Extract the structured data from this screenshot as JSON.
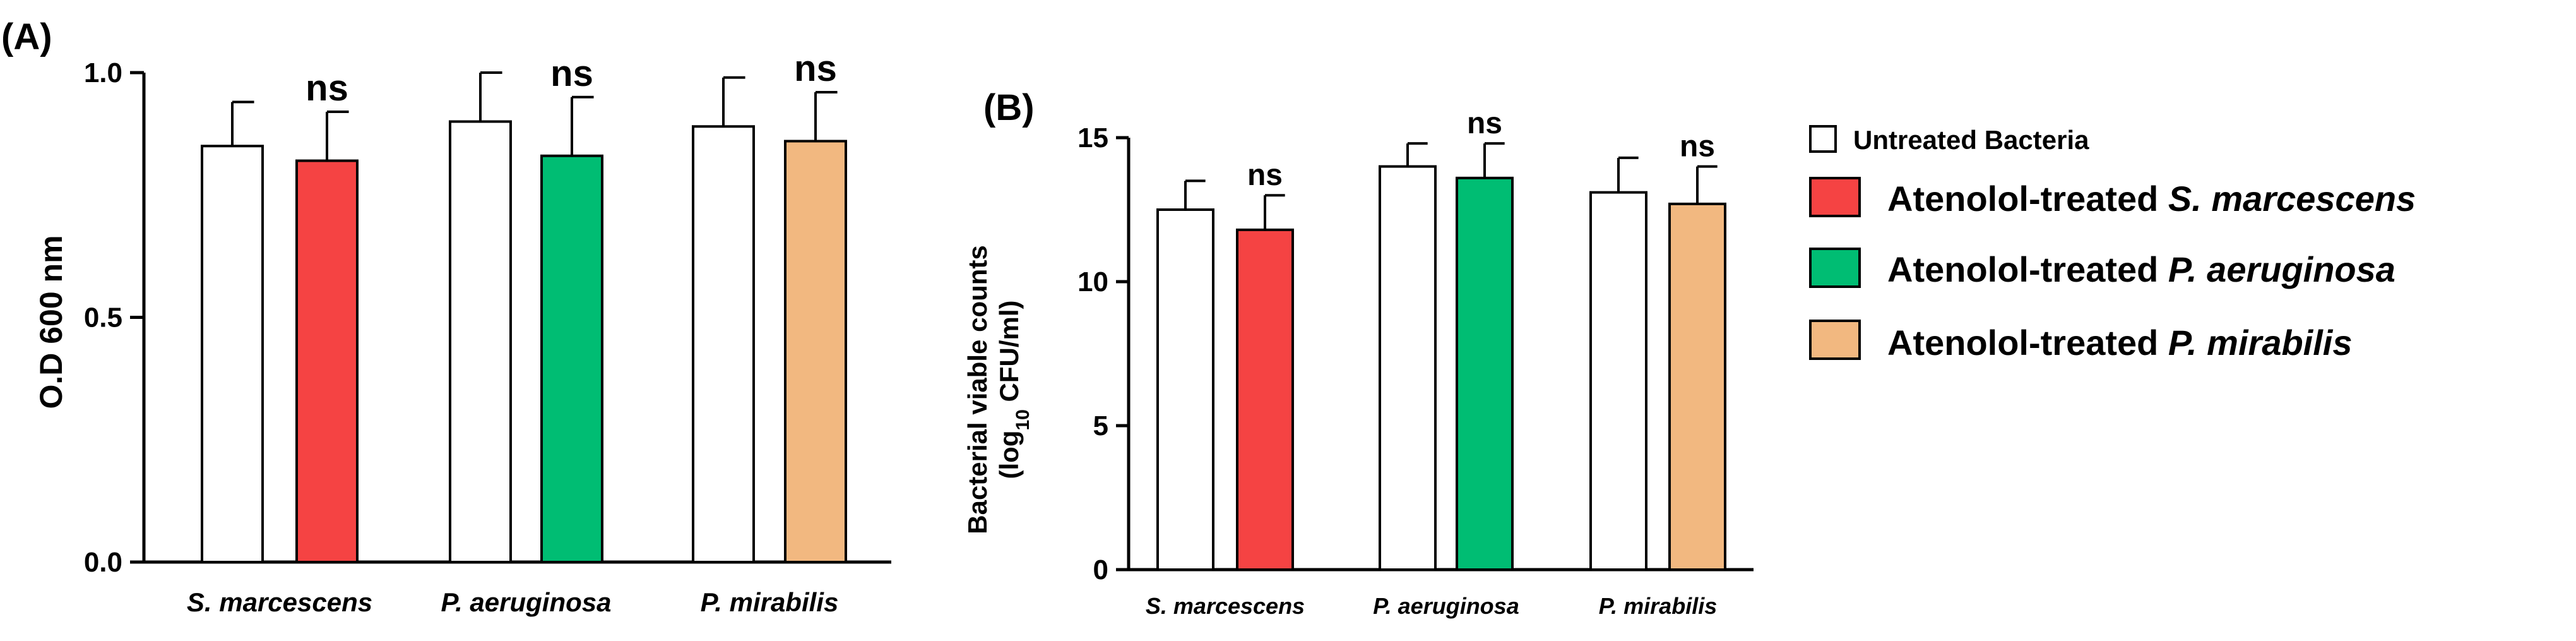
{
  "colors": {
    "untreated": "#ffffff",
    "s_marcescens": "#f54343",
    "p_aeruginosa": "#00bd73",
    "p_mirabilis": "#f2b880",
    "axis": "#000000"
  },
  "legend": {
    "items": [
      {
        "prefix": "Untreated Bacteria",
        "italic": "",
        "color_key": "untreated"
      },
      {
        "prefix": "Atenolol-treated ",
        "italic": "S. marcescens",
        "color_key": "s_marcescens"
      },
      {
        "prefix": "Atenolol-treated ",
        "italic": "P. aeruginosa",
        "color_key": "p_aeruginosa"
      },
      {
        "prefix": "Atenolol-treated ",
        "italic": "P.  mirabilis",
        "color_key": "p_mirabilis"
      }
    ]
  },
  "chart_data": [
    {
      "type": "bar",
      "panel_label": "(A)",
      "ylabel": "O.D 600 nm",
      "ylim": [
        0,
        1.0
      ],
      "yticks": [
        "0.0",
        "0.5",
        "1.0"
      ],
      "ytick_values": [
        0,
        0.5,
        1.0
      ],
      "categories": [
        "S. marcescens",
        "P. aeruginosa",
        "P.  mirabilis"
      ],
      "series": [
        {
          "name": "Untreated Bacteria",
          "values": [
            0.85,
            0.9,
            0.89
          ],
          "errors": [
            0.09,
            0.1,
            0.1
          ]
        },
        {
          "name": "Atenolol-treated",
          "values": [
            0.82,
            0.83,
            0.86
          ],
          "errors": [
            0.1,
            0.12,
            0.1
          ]
        }
      ],
      "annotations": [
        "ns",
        "ns",
        "ns"
      ]
    },
    {
      "type": "bar",
      "panel_label": "(B)",
      "ylabel_line1": "Bacterial viable counts",
      "ylabel_line2_pre": "(log",
      "ylabel_line2_sub": "10",
      "ylabel_line2_post": " CFU/ml)",
      "ylim": [
        0,
        15
      ],
      "yticks": [
        "0",
        "5",
        "10",
        "15"
      ],
      "ytick_values": [
        0,
        5,
        10,
        15
      ],
      "categories": [
        "S. marcescens",
        "P. aeruginosa",
        "P.  mirabilis"
      ],
      "series": [
        {
          "name": "Untreated Bacteria",
          "values": [
            12.5,
            14.0,
            13.1
          ],
          "errors": [
            1.0,
            0.8,
            1.2
          ]
        },
        {
          "name": "Atenolol-treated",
          "values": [
            11.8,
            13.6,
            12.7
          ],
          "errors": [
            1.2,
            1.2,
            1.3
          ]
        }
      ],
      "annotations": [
        "ns",
        "ns",
        "ns"
      ]
    }
  ]
}
